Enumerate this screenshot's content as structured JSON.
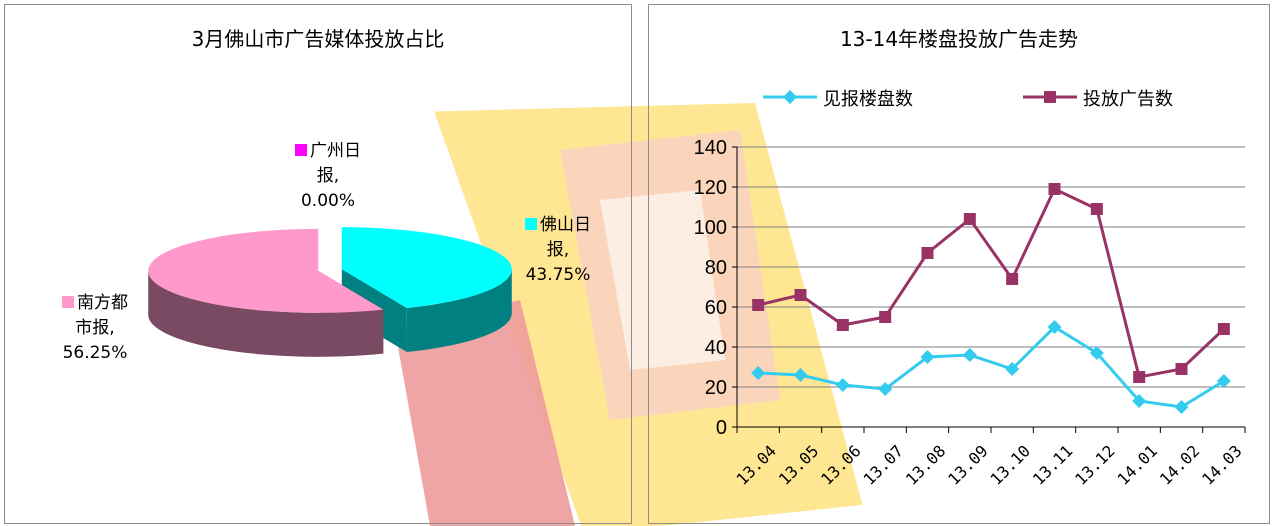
{
  "left_chart": {
    "title": "3月佛山市广告媒体投放占比",
    "labels": [
      {
        "key": "guangzhou",
        "name_l1": "广州日",
        "name_l2": "报,",
        "pct": "0.00%",
        "color": "#ff00ff"
      },
      {
        "key": "foshan",
        "name_l1": "佛山日",
        "name_l2": "报,",
        "pct": "43.75%",
        "color": "#00ffff"
      },
      {
        "key": "nanfang",
        "name_l1": "南方都",
        "name_l2": "市报,",
        "pct": "56.25%",
        "color": "#ff99cc"
      }
    ]
  },
  "right_chart": {
    "title": "13-14年楼盘投放广告走势",
    "legend": [
      {
        "name": "见报楼盘数",
        "color": "#33ccee"
      },
      {
        "name": "投放广告数",
        "color": "#993366"
      }
    ]
  },
  "chart_data": [
    {
      "type": "pie",
      "title": "3月佛山市广告媒体投放占比",
      "categories": [
        "广州日报",
        "佛山日报",
        "南方都市报"
      ],
      "values": [
        0.0,
        43.75,
        56.25
      ],
      "colors": [
        "#ff00ff",
        "#00ffff",
        "#ff99cc"
      ],
      "style": "3d-exploded"
    },
    {
      "type": "line",
      "title": "13-14年楼盘投放广告走势",
      "categories": [
        "13.04",
        "13.05",
        "13.06",
        "13.07",
        "13.08",
        "13.09",
        "13.10",
        "13.11",
        "13.12",
        "14.01",
        "14.02",
        "14.03"
      ],
      "series": [
        {
          "name": "见报楼盘数",
          "values": [
            27,
            26,
            21,
            19,
            35,
            36,
            29,
            50,
            37,
            13,
            10,
            23
          ],
          "color": "#33ccee",
          "marker": "diamond"
        },
        {
          "name": "投放广告数",
          "values": [
            61,
            66,
            51,
            55,
            87,
            104,
            74,
            119,
            109,
            25,
            29,
            49
          ],
          "color": "#993366",
          "marker": "square"
        }
      ],
      "ylim": [
        0,
        140
      ],
      "yticks": [
        0,
        20,
        40,
        60,
        80,
        100,
        120,
        140
      ],
      "grid": true,
      "legend_position": "top"
    }
  ]
}
